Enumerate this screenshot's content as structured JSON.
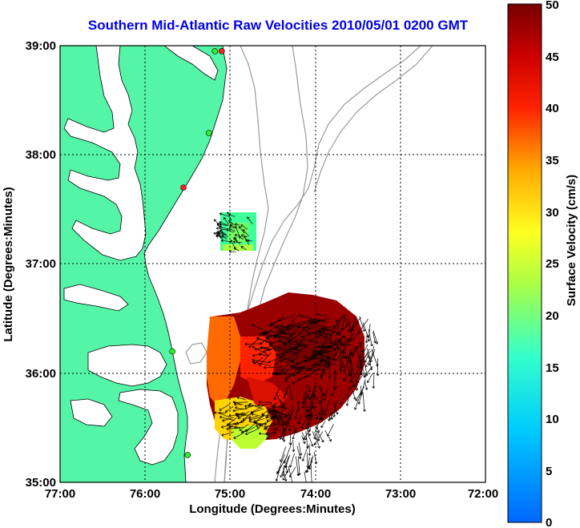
{
  "title": "Southern Mid-Atlantic Raw Velocities 2010/05/01 0200 GMT",
  "xlabel": "Longitude (Degrees:Minutes)",
  "ylabel": "Latitude (Degrees:Minutes)",
  "x_ticks": [
    "77:00",
    "76:00",
    "75:00",
    "74:00",
    "73:00",
    "72:00"
  ],
  "y_ticks": [
    "39:00",
    "38:00",
    "37:00",
    "36:00",
    "35:00"
  ],
  "colorbar": {
    "label": "Surface Velocity (cm/s)",
    "ticks": [
      "50",
      "45",
      "40",
      "35",
      "30",
      "25",
      "20",
      "15",
      "10",
      "5",
      "0"
    ],
    "range": [
      0,
      50
    ]
  },
  "colors": {
    "land": "#55f5a8",
    "water": "#ffffff",
    "bathymetry": "#9a9a9a",
    "title": "#0000e6",
    "grid": "#000000"
  },
  "stations": [
    {
      "lon": -75.1,
      "lat": 38.95,
      "color": "#ff2020"
    },
    {
      "lon": -75.18,
      "lat": 38.95,
      "color": "#30f030"
    },
    {
      "lon": -75.25,
      "lat": 38.2,
      "color": "#30f030"
    },
    {
      "lon": -75.55,
      "lat": 37.7,
      "color": "#ff2020"
    },
    {
      "lon": -75.68,
      "lat": 36.2,
      "color": "#30f030"
    },
    {
      "lon": -75.5,
      "lat": 35.25,
      "color": "#30f030"
    }
  ]
}
